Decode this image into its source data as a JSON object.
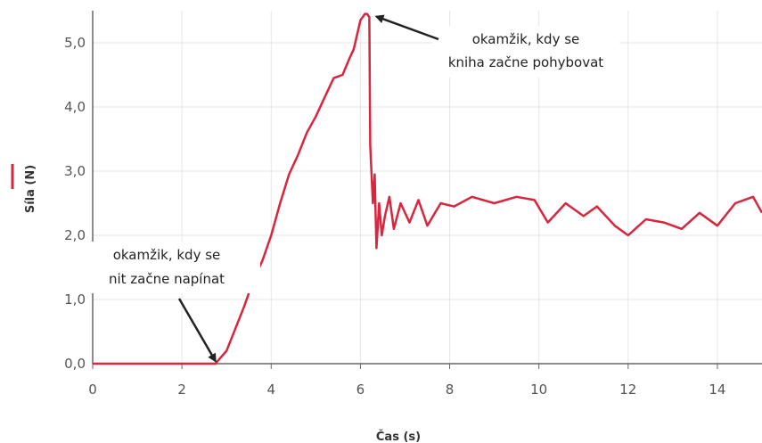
{
  "chart_data": {
    "type": "line",
    "xlabel": "Čas (s)",
    "ylabel": "Síla (N)",
    "xlim": [
      0,
      15
    ],
    "ylim": [
      0,
      5.5
    ],
    "x_ticks": [
      "0",
      "2",
      "4",
      "6",
      "8",
      "10",
      "12",
      "14"
    ],
    "y_ticks": [
      "0,0",
      "1,0",
      "2,0",
      "3,0",
      "4,0",
      "5,0"
    ],
    "grid": true,
    "series": [
      {
        "color": "#d7263d",
        "x": [
          0,
          0.5,
          1.0,
          1.5,
          2.0,
          2.5,
          2.75,
          2.85,
          3.0,
          3.2,
          3.4,
          3.6,
          3.8,
          4.0,
          4.2,
          4.4,
          4.6,
          4.8,
          5.0,
          5.2,
          5.4,
          5.6,
          5.75,
          5.85,
          6.0,
          6.1,
          6.15,
          6.2,
          6.22,
          6.28,
          6.32,
          6.36,
          6.42,
          6.48,
          6.55,
          6.65,
          6.75,
          6.9,
          7.1,
          7.3,
          7.5,
          7.8,
          8.1,
          8.5,
          9.0,
          9.5,
          9.9,
          10.2,
          10.6,
          11.0,
          11.3,
          11.7,
          12.0,
          12.4,
          12.8,
          13.2,
          13.6,
          14.0,
          14.4,
          14.8,
          15.0
        ],
        "y": [
          0,
          0,
          0,
          0,
          0,
          0,
          0.0,
          0.08,
          0.2,
          0.55,
          0.9,
          1.3,
          1.6,
          2.0,
          2.5,
          2.95,
          3.25,
          3.6,
          3.85,
          4.15,
          4.45,
          4.5,
          4.75,
          4.9,
          5.35,
          5.45,
          5.45,
          5.4,
          3.4,
          2.5,
          2.95,
          1.8,
          2.5,
          2.0,
          2.3,
          2.6,
          2.1,
          2.5,
          2.2,
          2.55,
          2.15,
          2.5,
          2.45,
          2.6,
          2.5,
          2.6,
          2.55,
          2.2,
          2.5,
          2.3,
          2.45,
          2.15,
          2.0,
          2.25,
          2.2,
          2.1,
          2.35,
          2.15,
          2.5,
          2.6,
          2.35
        ]
      }
    ],
    "annotations": [
      {
        "line1": "okamžik, kdy se",
        "line2": "kniha začne pohybovat",
        "x": 6.2,
        "y": 5.45
      },
      {
        "line1": "okamžik, kdy se",
        "line2": "nit začne napínat",
        "x": 2.75,
        "y": 0.0
      }
    ]
  }
}
